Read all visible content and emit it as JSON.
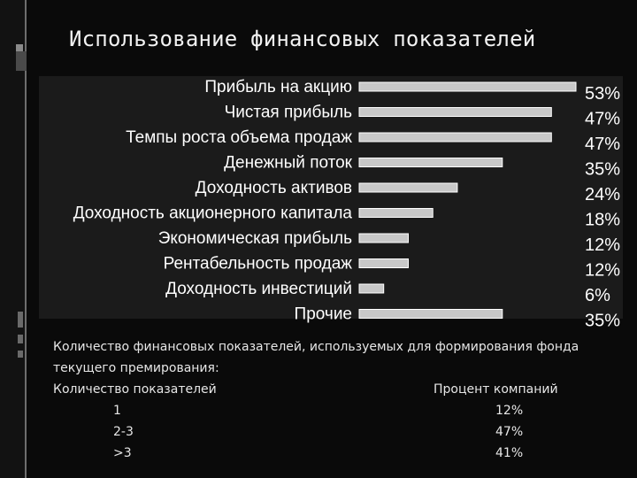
{
  "title": "Использование финансовых показателей",
  "chart_data": {
    "type": "bar",
    "orientation": "horizontal",
    "categories": [
      "Прибыль на акцию",
      "Чистая прибыль",
      "Темпы роста объема продаж",
      "Денежный поток",
      "Доходность активов",
      "Доходность акционерного капитала",
      "Экономическая прибыль",
      "Рентабельность продаж",
      "Доходность инвестиций",
      "Прочие"
    ],
    "values": [
      53,
      47,
      47,
      35,
      24,
      18,
      12,
      12,
      6,
      35
    ],
    "value_labels": [
      "53%",
      "47%",
      "47%",
      "35%",
      "24%",
      "18%",
      "12%",
      "12%",
      "6%",
      "35%"
    ],
    "unit": "%",
    "xlim": [
      0,
      53
    ],
    "grid": false,
    "bar_color": "#c8c8c8",
    "background": "#1b1b1b"
  },
  "notes": {
    "caption": "Количество финансовых показателей, используемых для формирования фонда текущего премирования:",
    "col_headers": [
      "Количество показателей",
      "Процент компаний"
    ],
    "rows": [
      {
        "count": "1",
        "percent": "12%"
      },
      {
        "count": "2-3",
        "percent": "47%"
      },
      {
        "count": ">3",
        "percent": "41%"
      }
    ]
  }
}
